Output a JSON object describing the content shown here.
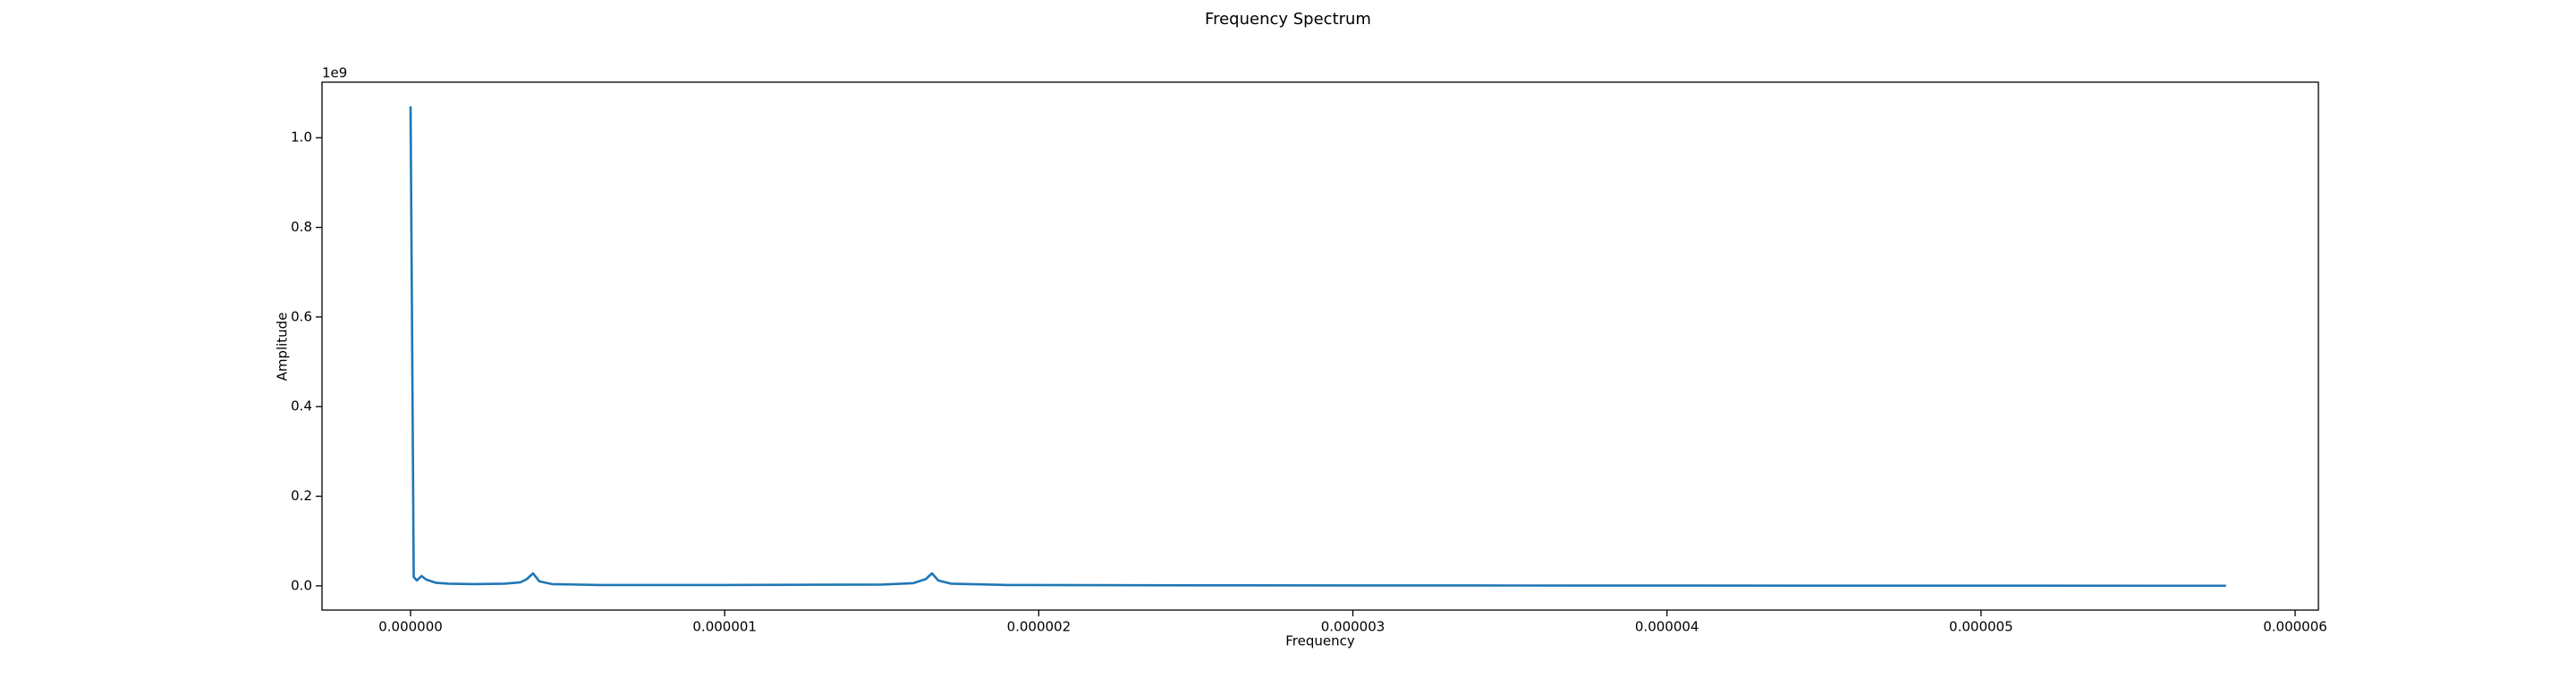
{
  "chart_data": {
    "type": "line",
    "title": "Frequency Spectrum",
    "x_label": "Frequency",
    "y_label": "Amplitude",
    "y_offset_label": "1e9",
    "x": [
      0,
      1e-08,
      2e-08,
      3.5e-08,
      5e-08,
      8e-08,
      1.2e-07,
      2e-07,
      3e-07,
      3.5e-07,
      3.7e-07,
      3.9e-07,
      4.1e-07,
      4.5e-07,
      6e-07,
      1e-06,
      1.5e-06,
      1.6e-06,
      1.64e-06,
      1.66e-06,
      1.68e-06,
      1.72e-06,
      1.9e-06,
      2.5e-06,
      3.5e-06,
      4.5e-06,
      5.78e-06
    ],
    "series": [
      {
        "color": "#1f77b4",
        "values": [
          1.07,
          0.02,
          0.012,
          0.022,
          0.014,
          0.007,
          0.005,
          0.004,
          0.005,
          0.008,
          0.015,
          0.028,
          0.01,
          0.004,
          0.002,
          0.002,
          0.003,
          0.006,
          0.015,
          0.028,
          0.012,
          0.005,
          0.002,
          0.0012,
          0.0008,
          0.0005,
          0.0003
        ]
      }
    ],
    "xlim": [
      -2.82e-07,
      6.074e-06
    ],
    "ylim": [
      -0.054,
      1.124
    ],
    "xticks": [
      {
        "value": 0,
        "label": "0.000000"
      },
      {
        "value": 1e-06,
        "label": "0.000001"
      },
      {
        "value": 2e-06,
        "label": "0.000002"
      },
      {
        "value": 3e-06,
        "label": "0.000003"
      },
      {
        "value": 4e-06,
        "label": "0.000004"
      },
      {
        "value": 5e-06,
        "label": "0.000005"
      },
      {
        "value": 6e-06,
        "label": "0.000006"
      }
    ],
    "yticks": [
      {
        "value": 0,
        "label": "0.0"
      },
      {
        "value": 0.2,
        "label": "0.2"
      },
      {
        "value": 0.4,
        "label": "0.4"
      },
      {
        "value": 0.6,
        "label": "0.6"
      },
      {
        "value": 0.8,
        "label": "0.8"
      },
      {
        "value": 1.0,
        "label": "1.0"
      }
    ],
    "grid": false
  }
}
